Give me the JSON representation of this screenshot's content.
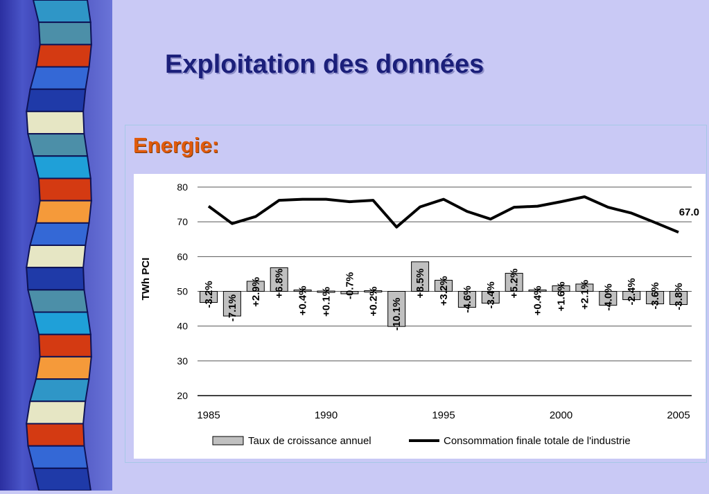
{
  "slide": {
    "title": "Exploitation des données",
    "section": "Energie:"
  },
  "colors": {
    "background": "#c9c9f5",
    "title": "#1b1f7a",
    "section": "#e05a0c",
    "bar_fill": "#c0c0c0",
    "line": "#000000"
  },
  "decor": {
    "stripes": [
      "#2f96c7",
      "#4c8fa8",
      "#d43a12",
      "#3468d6",
      "#1f3aa8",
      "#e6e6c4",
      "#4c8fa8",
      "#1fa0d8",
      "#d43a12",
      "#f59a3a",
      "#3468d6",
      "#e6e6c4",
      "#1f3aa8",
      "#4c8fa8",
      "#1fa0d8",
      "#d43a12",
      "#f59a3a",
      "#2f96c7",
      "#e6e6c4",
      "#d43a12",
      "#3468d6",
      "#1f3aa8"
    ]
  },
  "chart_data": {
    "type": "bar",
    "ylabel": "TWh PCI",
    "ylim": [
      20,
      80
    ],
    "yticks": [
      20,
      30,
      40,
      50,
      60,
      70,
      80
    ],
    "baseline": 50,
    "grid": true,
    "legend_position": "bottom",
    "xticks": [
      "1985",
      "1990",
      "1995",
      "2000",
      "2005"
    ],
    "x": [
      1985,
      1986,
      1987,
      1988,
      1989,
      1990,
      1991,
      1992,
      1993,
      1994,
      1995,
      1996,
      1997,
      1998,
      1999,
      2000,
      2001,
      2002,
      2003,
      2004,
      2005
    ],
    "series": [
      {
        "name": "Taux de croissance annuel",
        "type": "bar",
        "values": [
          -3.2,
          -7.1,
          2.9,
          6.8,
          0.4,
          0.1,
          -0.7,
          0.2,
          -10.1,
          8.5,
          3.2,
          -4.6,
          -3.4,
          5.2,
          0.4,
          1.6,
          2.1,
          -4.0,
          -2.4,
          -3.6,
          -3.8
        ],
        "labels": [
          "-3.2%",
          "-7.1%",
          "+2.9%",
          "+6.8%",
          "+0.4%",
          "+0.1%",
          "-0.7%",
          "+0.2%",
          "-10.1%",
          "+8.5%",
          "+3.2%",
          "-4.6%",
          "-3.4%",
          "+5.2%",
          "+0.4%",
          "+1.6%",
          "+2.1%",
          "-4.0%",
          "-2.4%",
          "-3.6%",
          "-3.8%"
        ]
      },
      {
        "name": "Consommation finale  totale de l'industrie",
        "type": "line",
        "values": [
          74.5,
          69.5,
          71.5,
          76.2,
          76.5,
          76.5,
          75.8,
          76.2,
          68.5,
          74.3,
          76.5,
          73.0,
          70.8,
          74.2,
          74.5,
          75.8,
          77.2,
          74.2,
          72.5,
          69.8,
          67.0
        ],
        "end_label": "67.0"
      }
    ]
  }
}
